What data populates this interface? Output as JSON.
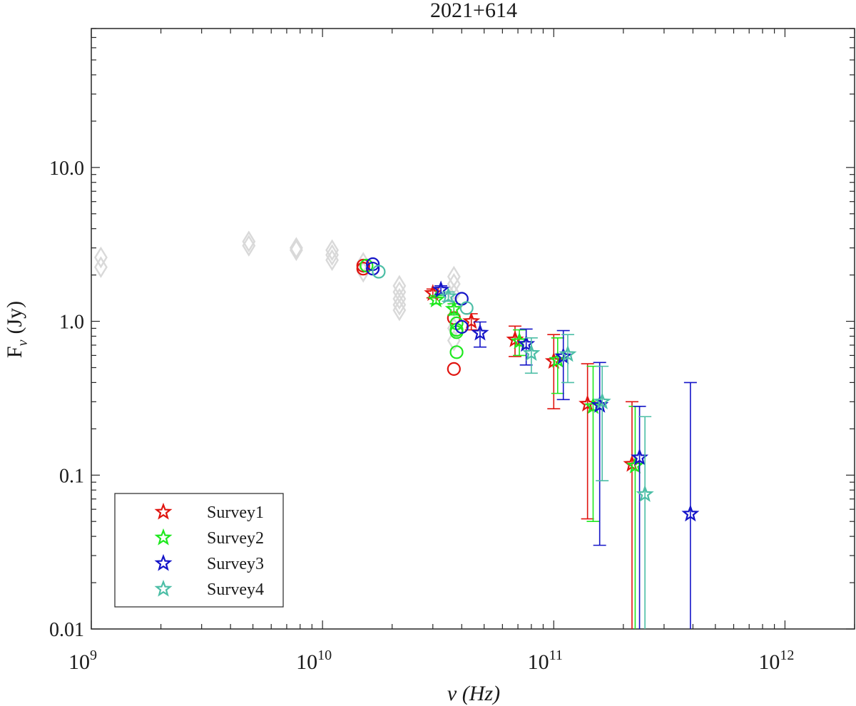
{
  "chart_data": {
    "type": "scatter",
    "title": "2021+614",
    "xlabel": "ν (Hz)",
    "ylabel": "F_ν (Jy)",
    "ylabel_main": "F",
    "ylabel_sub": "ν",
    "ylabel_unit": "(Jy)",
    "xscale": "log",
    "yscale": "log",
    "xlim": [
      1000000000.0,
      2000000000000.0
    ],
    "ylim": [
      0.01,
      80
    ],
    "grid": false,
    "legend_position": "bottom-left",
    "x_ticks": [
      {
        "value": 1000000000.0,
        "base": "10",
        "exp": "9"
      },
      {
        "value": 10000000000.0,
        "base": "10",
        "exp": "10"
      },
      {
        "value": 100000000000.0,
        "base": "10",
        "exp": "11"
      },
      {
        "value": 1000000000000.0,
        "base": "10",
        "exp": "12"
      }
    ],
    "y_ticks": [
      {
        "value": 0.01,
        "label": "0.01"
      },
      {
        "value": 0.1,
        "label": "0.1"
      },
      {
        "value": 1,
        "label": "1.0"
      },
      {
        "value": 10,
        "label": "10.0"
      }
    ],
    "colors": {
      "Survey1": "#e0140f",
      "Survey2": "#1ee81e",
      "Survey3": "#1414c8",
      "Survey4": "#4cbea6",
      "archival": "#d9d9d9"
    },
    "archival": {
      "name": "archival",
      "marker": "diamond",
      "points": [
        {
          "x": 1100000000.0,
          "y": 2.6
        },
        {
          "x": 1100000000.0,
          "y": 2.25
        },
        {
          "x": 4800000000.0,
          "y": 3.3
        },
        {
          "x": 4800000000.0,
          "y": 3.1
        },
        {
          "x": 7700000000.0,
          "y": 3.0
        },
        {
          "x": 7700000000.0,
          "y": 2.9
        },
        {
          "x": 11000000000.0,
          "y": 2.9
        },
        {
          "x": 11000000000.0,
          "y": 2.7
        },
        {
          "x": 11000000000.0,
          "y": 2.5
        },
        {
          "x": 15000000000.0,
          "y": 2.4
        },
        {
          "x": 15000000000.0,
          "y": 2.1
        },
        {
          "x": 21500000000.0,
          "y": 1.7
        },
        {
          "x": 21500000000.0,
          "y": 1.55
        },
        {
          "x": 21500000000.0,
          "y": 1.4
        },
        {
          "x": 21500000000.0,
          "y": 1.28
        },
        {
          "x": 21500000000.0,
          "y": 1.18
        },
        {
          "x": 37000000000.0,
          "y": 1.95
        },
        {
          "x": 37000000000.0,
          "y": 1.75
        },
        {
          "x": 37000000000.0,
          "y": 1.5
        },
        {
          "x": 37000000000.0,
          "y": 1.25
        },
        {
          "x": 37000000000.0,
          "y": 0.9
        },
        {
          "x": 37000000000.0,
          "y": 0.75
        }
      ]
    },
    "series": [
      {
        "name": "Survey1",
        "circles": [
          {
            "x": 15000000000.0,
            "y": 2.3
          },
          {
            "x": 15000000000.0,
            "y": 2.2
          },
          {
            "x": 37000000000.0,
            "y": 1.05
          },
          {
            "x": 37000000000.0,
            "y": 0.49
          }
        ],
        "stars": [
          {
            "x": 30000000000.0,
            "y": 1.52,
            "lo": 1.42,
            "hi": 1.62
          },
          {
            "x": 44000000000.0,
            "y": 1.0,
            "lo": 0.88,
            "hi": 1.12
          },
          {
            "x": 68000000000.0,
            "y": 0.76,
            "lo": 0.59,
            "hi": 0.93
          },
          {
            "x": 100000000000.0,
            "y": 0.55,
            "lo": 0.27,
            "hi": 0.82
          },
          {
            "x": 140000000000.0,
            "y": 0.29,
            "lo": 0.052,
            "hi": 0.53
          },
          {
            "x": 218000000000.0,
            "y": 0.118,
            "lo": 0.008,
            "hi": 0.3
          }
        ]
      },
      {
        "name": "Survey2",
        "circles": [
          {
            "x": 15500000000.0,
            "y": 2.3
          },
          {
            "x": 38000000000.0,
            "y": 0.97
          },
          {
            "x": 38000000000.0,
            "y": 0.88
          },
          {
            "x": 38000000000.0,
            "y": 0.85
          },
          {
            "x": 38000000000.0,
            "y": 0.63
          }
        ],
        "stars": [
          {
            "x": 31000000000.0,
            "y": 1.38,
            "lo": 1.3,
            "hi": 1.47
          },
          {
            "x": 37000000000.0,
            "y": 1.2,
            "lo": 1.1,
            "hi": 1.3
          },
          {
            "x": 71000000000.0,
            "y": 0.74,
            "lo": 0.6,
            "hi": 0.88
          },
          {
            "x": 104000000000.0,
            "y": 0.56,
            "lo": 0.34,
            "hi": 0.78
          },
          {
            "x": 148000000000.0,
            "y": 0.28,
            "lo": 0.05,
            "hi": 0.51
          },
          {
            "x": 225000000000.0,
            "y": 0.115,
            "lo": 0.008,
            "hi": 0.28
          }
        ]
      },
      {
        "name": "Survey3",
        "circles": [
          {
            "x": 16500000000.0,
            "y": 2.35
          },
          {
            "x": 16500000000.0,
            "y": 2.2
          },
          {
            "x": 40000000000.0,
            "y": 1.4
          },
          {
            "x": 40000000000.0,
            "y": 0.92
          }
        ],
        "stars": [
          {
            "x": 32500000000.0,
            "y": 1.6,
            "lo": 1.5,
            "hi": 1.7
          },
          {
            "x": 48000000000.0,
            "y": 0.84,
            "lo": 0.68,
            "hi": 0.99
          },
          {
            "x": 76000000000.0,
            "y": 0.71,
            "lo": 0.52,
            "hi": 0.89
          },
          {
            "x": 110000000000.0,
            "y": 0.59,
            "lo": 0.31,
            "hi": 0.87
          },
          {
            "x": 158000000000.0,
            "y": 0.285,
            "lo": 0.035,
            "hi": 0.54
          },
          {
            "x": 235000000000.0,
            "y": 0.13,
            "lo": 0.008,
            "hi": 0.28
          },
          {
            "x": 390000000000.0,
            "y": 0.056,
            "lo": 0.008,
            "hi": 0.4
          }
        ]
      },
      {
        "name": "Survey4",
        "circles": [
          {
            "x": 17500000000.0,
            "y": 2.1
          },
          {
            "x": 42000000000.0,
            "y": 1.22
          }
        ],
        "stars": [
          {
            "x": 35000000000.0,
            "y": 1.45,
            "lo": 1.35,
            "hi": 1.55
          },
          {
            "x": 80000000000.0,
            "y": 0.62,
            "lo": 0.46,
            "hi": 0.78
          },
          {
            "x": 115000000000.0,
            "y": 0.61,
            "lo": 0.4,
            "hi": 0.82
          },
          {
            "x": 162000000000.0,
            "y": 0.3,
            "lo": 0.092,
            "hi": 0.51
          },
          {
            "x": 248000000000.0,
            "y": 0.075,
            "lo": 0.008,
            "hi": 0.24
          }
        ]
      }
    ]
  }
}
